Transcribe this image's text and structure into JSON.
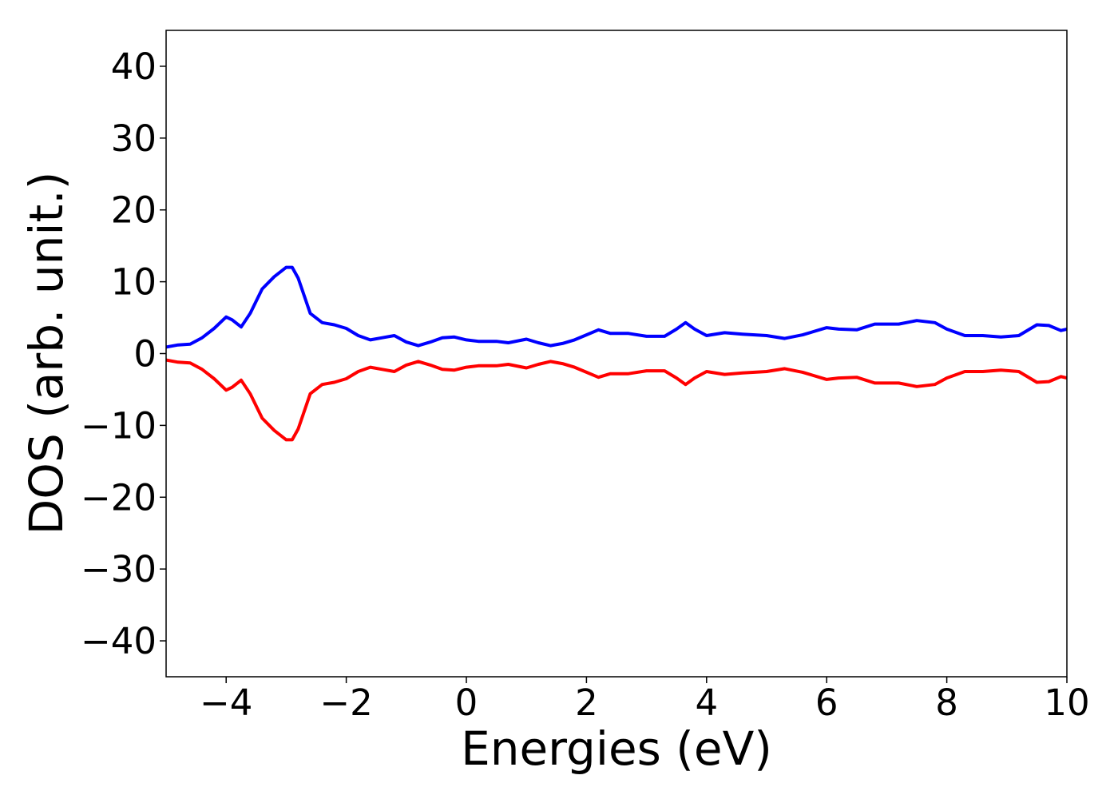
{
  "chart_data": {
    "type": "line",
    "xlabel": "Energies (eV)",
    "ylabel": "DOS (arb. unit.)",
    "xlim": [
      -5,
      10
    ],
    "ylim": [
      -45,
      45
    ],
    "xticks": [
      -4,
      -2,
      0,
      2,
      4,
      6,
      8,
      10
    ],
    "yticks": [
      -40,
      -30,
      -20,
      -10,
      0,
      10,
      20,
      30,
      40
    ],
    "grid": false,
    "legend": "none",
    "series": [
      {
        "color": "#0000ff",
        "points": [
          [
            -5.0,
            0.9
          ],
          [
            -4.8,
            1.2
          ],
          [
            -4.6,
            1.3
          ],
          [
            -4.4,
            2.2
          ],
          [
            -4.2,
            3.5
          ],
          [
            -4.0,
            5.1
          ],
          [
            -3.9,
            4.7
          ],
          [
            -3.75,
            3.7
          ],
          [
            -3.6,
            5.6
          ],
          [
            -3.4,
            9.0
          ],
          [
            -3.2,
            10.7
          ],
          [
            -3.0,
            12.0
          ],
          [
            -2.9,
            12.0
          ],
          [
            -2.8,
            10.5
          ],
          [
            -2.6,
            5.6
          ],
          [
            -2.4,
            4.3
          ],
          [
            -2.2,
            4.0
          ],
          [
            -2.0,
            3.5
          ],
          [
            -1.8,
            2.5
          ],
          [
            -1.6,
            1.9
          ],
          [
            -1.4,
            2.2
          ],
          [
            -1.2,
            2.5
          ],
          [
            -1.0,
            1.6
          ],
          [
            -0.8,
            1.1
          ],
          [
            -0.6,
            1.6
          ],
          [
            -0.4,
            2.2
          ],
          [
            -0.2,
            2.3
          ],
          [
            0.0,
            1.9
          ],
          [
            0.2,
            1.7
          ],
          [
            0.5,
            1.7
          ],
          [
            0.7,
            1.5
          ],
          [
            1.0,
            2.0
          ],
          [
            1.2,
            1.5
          ],
          [
            1.4,
            1.1
          ],
          [
            1.6,
            1.4
          ],
          [
            1.8,
            1.9
          ],
          [
            2.0,
            2.6
          ],
          [
            2.2,
            3.3
          ],
          [
            2.4,
            2.8
          ],
          [
            2.7,
            2.8
          ],
          [
            3.0,
            2.4
          ],
          [
            3.3,
            2.4
          ],
          [
            3.5,
            3.4
          ],
          [
            3.65,
            4.3
          ],
          [
            3.8,
            3.4
          ],
          [
            4.0,
            2.5
          ],
          [
            4.3,
            2.9
          ],
          [
            4.6,
            2.7
          ],
          [
            5.0,
            2.5
          ],
          [
            5.3,
            2.1
          ],
          [
            5.6,
            2.6
          ],
          [
            6.0,
            3.6
          ],
          [
            6.2,
            3.4
          ],
          [
            6.5,
            3.3
          ],
          [
            6.8,
            4.1
          ],
          [
            7.2,
            4.1
          ],
          [
            7.5,
            4.6
          ],
          [
            7.8,
            4.3
          ],
          [
            8.0,
            3.4
          ],
          [
            8.3,
            2.5
          ],
          [
            8.6,
            2.5
          ],
          [
            8.9,
            2.3
          ],
          [
            9.2,
            2.5
          ],
          [
            9.5,
            4.0
          ],
          [
            9.7,
            3.9
          ],
          [
            9.9,
            3.2
          ],
          [
            10.0,
            3.4
          ]
        ]
      },
      {
        "color": "#ff0000",
        "points": [
          [
            -5.0,
            -0.9
          ],
          [
            -4.8,
            -1.2
          ],
          [
            -4.6,
            -1.3
          ],
          [
            -4.4,
            -2.2
          ],
          [
            -4.2,
            -3.5
          ],
          [
            -4.0,
            -5.1
          ],
          [
            -3.9,
            -4.7
          ],
          [
            -3.75,
            -3.7
          ],
          [
            -3.6,
            -5.6
          ],
          [
            -3.4,
            -9.0
          ],
          [
            -3.2,
            -10.7
          ],
          [
            -3.0,
            -12.0
          ],
          [
            -2.9,
            -12.0
          ],
          [
            -2.8,
            -10.5
          ],
          [
            -2.6,
            -5.6
          ],
          [
            -2.4,
            -4.3
          ],
          [
            -2.2,
            -4.0
          ],
          [
            -2.0,
            -3.5
          ],
          [
            -1.8,
            -2.5
          ],
          [
            -1.6,
            -1.9
          ],
          [
            -1.4,
            -2.2
          ],
          [
            -1.2,
            -2.5
          ],
          [
            -1.0,
            -1.6
          ],
          [
            -0.8,
            -1.1
          ],
          [
            -0.6,
            -1.6
          ],
          [
            -0.4,
            -2.2
          ],
          [
            -0.2,
            -2.3
          ],
          [
            0.0,
            -1.9
          ],
          [
            0.2,
            -1.7
          ],
          [
            0.5,
            -1.7
          ],
          [
            0.7,
            -1.5
          ],
          [
            1.0,
            -2.0
          ],
          [
            1.2,
            -1.5
          ],
          [
            1.4,
            -1.1
          ],
          [
            1.6,
            -1.4
          ],
          [
            1.8,
            -1.9
          ],
          [
            2.0,
            -2.6
          ],
          [
            2.2,
            -3.3
          ],
          [
            2.4,
            -2.8
          ],
          [
            2.7,
            -2.8
          ],
          [
            3.0,
            -2.4
          ],
          [
            3.3,
            -2.4
          ],
          [
            3.5,
            -3.4
          ],
          [
            3.65,
            -4.3
          ],
          [
            3.8,
            -3.4
          ],
          [
            4.0,
            -2.5
          ],
          [
            4.3,
            -2.9
          ],
          [
            4.6,
            -2.7
          ],
          [
            5.0,
            -2.5
          ],
          [
            5.3,
            -2.1
          ],
          [
            5.6,
            -2.6
          ],
          [
            6.0,
            -3.6
          ],
          [
            6.2,
            -3.4
          ],
          [
            6.5,
            -3.3
          ],
          [
            6.8,
            -4.1
          ],
          [
            7.2,
            -4.1
          ],
          [
            7.5,
            -4.6
          ],
          [
            7.8,
            -4.3
          ],
          [
            8.0,
            -3.4
          ],
          [
            8.3,
            -2.5
          ],
          [
            8.6,
            -2.5
          ],
          [
            8.9,
            -2.3
          ],
          [
            9.2,
            -2.5
          ],
          [
            9.5,
            -4.0
          ],
          [
            9.7,
            -3.9
          ],
          [
            9.9,
            -3.2
          ],
          [
            10.0,
            -3.4
          ]
        ]
      }
    ]
  }
}
